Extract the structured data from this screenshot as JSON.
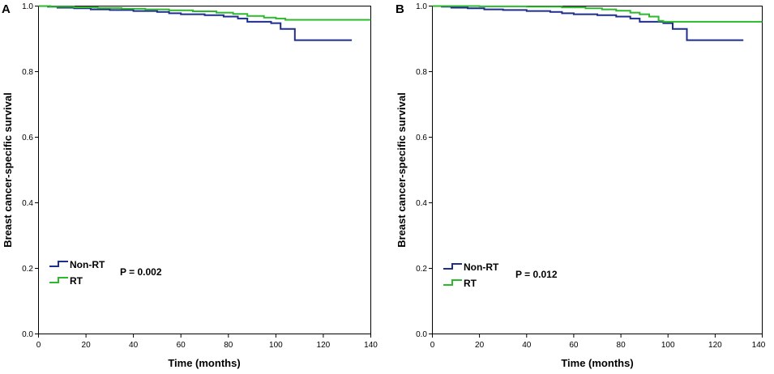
{
  "chart_data": [
    {
      "type": "line",
      "panel_label": "A",
      "xlabel": "Time (months)",
      "ylabel": "Breast cancer-specific survival",
      "xlim": [
        0,
        140
      ],
      "ylim": [
        0.0,
        1.0
      ],
      "xticks": [
        "0",
        "20",
        "40",
        "60",
        "80",
        "100",
        "120",
        "140"
      ],
      "yticks": [
        "0.0",
        "0.2",
        "0.4",
        "0.6",
        "0.8",
        "1.0"
      ],
      "annotation": "P = 0.002",
      "legend_position": "lower-left",
      "series": [
        {
          "name": "Non-RT",
          "color": "#1f2d8f",
          "step_points": [
            [
              0,
              1.0
            ],
            [
              4,
              0.998
            ],
            [
              8,
              0.995
            ],
            [
              15,
              0.993
            ],
            [
              22,
              0.99
            ],
            [
              30,
              0.988
            ],
            [
              40,
              0.985
            ],
            [
              50,
              0.982
            ],
            [
              55,
              0.978
            ],
            [
              60,
              0.975
            ],
            [
              70,
              0.972
            ],
            [
              78,
              0.968
            ],
            [
              84,
              0.962
            ],
            [
              88,
              0.952
            ],
            [
              98,
              0.948
            ],
            [
              102,
              0.93
            ],
            [
              108,
              0.896
            ],
            [
              132,
              0.896
            ]
          ]
        },
        {
          "name": "RT",
          "color": "#2eb82e",
          "step_points": [
            [
              0,
              1.0
            ],
            [
              5,
              0.998
            ],
            [
              15,
              0.996
            ],
            [
              25,
              0.994
            ],
            [
              35,
              0.992
            ],
            [
              45,
              0.99
            ],
            [
              55,
              0.987
            ],
            [
              65,
              0.984
            ],
            [
              75,
              0.98
            ],
            [
              82,
              0.976
            ],
            [
              88,
              0.97
            ],
            [
              95,
              0.965
            ],
            [
              100,
              0.962
            ],
            [
              104,
              0.958
            ],
            [
              140,
              0.958
            ]
          ]
        }
      ]
    },
    {
      "type": "line",
      "panel_label": "B",
      "xlabel": "Time (months)",
      "ylabel": "Breast cancer-specific survival",
      "xlim": [
        0,
        140
      ],
      "ylim": [
        0.0,
        1.0
      ],
      "xticks": [
        "0",
        "20",
        "40",
        "60",
        "80",
        "100",
        "120",
        "140"
      ],
      "yticks": [
        "0.0",
        "0.2",
        "0.4",
        "0.6",
        "0.8",
        "1.0"
      ],
      "annotation": "P = 0.012",
      "legend_position": "lower-left",
      "series": [
        {
          "name": "Non-RT",
          "color": "#1f2d8f",
          "step_points": [
            [
              0,
              1.0
            ],
            [
              4,
              0.998
            ],
            [
              8,
              0.995
            ],
            [
              15,
              0.993
            ],
            [
              22,
              0.99
            ],
            [
              30,
              0.988
            ],
            [
              40,
              0.985
            ],
            [
              50,
              0.982
            ],
            [
              55,
              0.978
            ],
            [
              60,
              0.975
            ],
            [
              70,
              0.972
            ],
            [
              78,
              0.968
            ],
            [
              84,
              0.962
            ],
            [
              88,
              0.952
            ],
            [
              98,
              0.948
            ],
            [
              102,
              0.93
            ],
            [
              108,
              0.896
            ],
            [
              132,
              0.896
            ]
          ]
        },
        {
          "name": "RT",
          "color": "#2eb82e",
          "step_points": [
            [
              0,
              1.0
            ],
            [
              20,
              0.999
            ],
            [
              40,
              0.998
            ],
            [
              55,
              0.996
            ],
            [
              65,
              0.993
            ],
            [
              72,
              0.99
            ],
            [
              78,
              0.986
            ],
            [
              84,
              0.98
            ],
            [
              88,
              0.975
            ],
            [
              92,
              0.968
            ],
            [
              96,
              0.955
            ],
            [
              98,
              0.952
            ],
            [
              140,
              0.952
            ]
          ]
        }
      ]
    }
  ]
}
